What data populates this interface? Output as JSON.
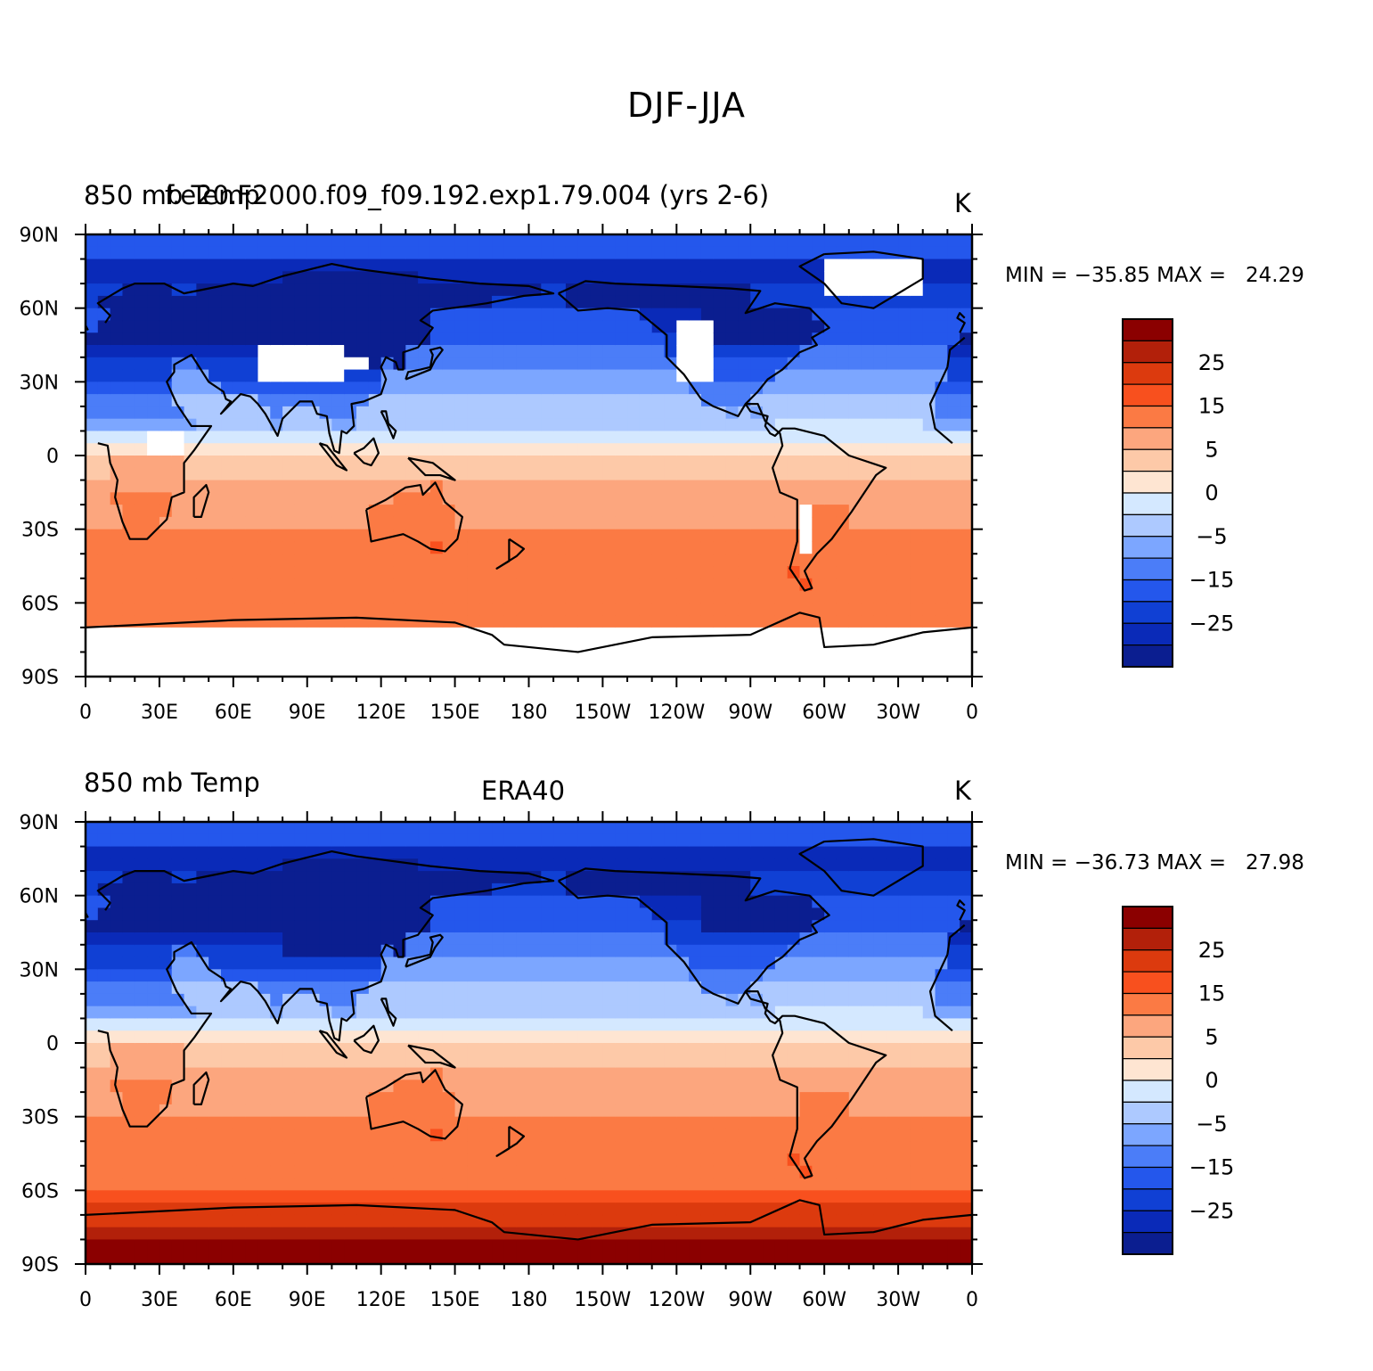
{
  "figure_title": "DJF-JJA",
  "lat_labels": [
    "90N",
    "60N",
    "30N",
    "0",
    "30S",
    "60S",
    "90S"
  ],
  "lon_labels": [
    "0",
    "30E",
    "60E",
    "90E",
    "120E",
    "150E",
    "180",
    "150W",
    "120W",
    "90W",
    "60W",
    "30W",
    "0"
  ],
  "colorbar": {
    "labels": [
      "25",
      "15",
      "5",
      "0",
      "-5",
      "-15",
      "-25"
    ],
    "colors": [
      "#8b0000",
      "#b2200a",
      "#dc3a0e",
      "#f8501e",
      "#fb7a44",
      "#fca67e",
      "#fdc9a8",
      "#fee5d2",
      "#d4e8ff",
      "#adc9ff",
      "#7ca6ff",
      "#4b7df8",
      "#2457ec",
      "#1040d4",
      "#0a2ab8",
      "#0b1e90"
    ]
  },
  "panels": [
    {
      "left_title": "850 mb Temp",
      "center_title": "f.e20.F2000.f09_f09.192.exp1.79.004 (yrs 2-6)",
      "units": "K",
      "stats": "MIN = −35.85 MAX =   24.29"
    },
    {
      "left_title": "850 mb Temp",
      "center_title": "ERA40",
      "units": "K",
      "stats": "MIN = −36.73 MAX =   27.98"
    }
  ],
  "chart_data": {
    "type": "heatmap",
    "title": "DJF-JJA",
    "variable": "850 mb Temp",
    "units": "K",
    "contour_levels": [
      -35,
      -30,
      -25,
      -20,
      -15,
      -10,
      -5,
      -2,
      0,
      2,
      5,
      10,
      15,
      20,
      25,
      30
    ],
    "x_ticks": [
      "0",
      "30E",
      "60E",
      "90E",
      "120E",
      "150E",
      "180",
      "150W",
      "120W",
      "90W",
      "60W",
      "30W",
      "0"
    ],
    "y_ticks": [
      "90N",
      "60N",
      "30N",
      "0",
      "30S",
      "60S",
      "90S"
    ],
    "panels": [
      {
        "name": "f.e20.F2000.f09_f09.192.exp1.79.004 (yrs 2-6)",
        "min": -35.85,
        "max": 24.29
      },
      {
        "name": "ERA40",
        "min": -36.73,
        "max": 27.98
      }
    ]
  }
}
